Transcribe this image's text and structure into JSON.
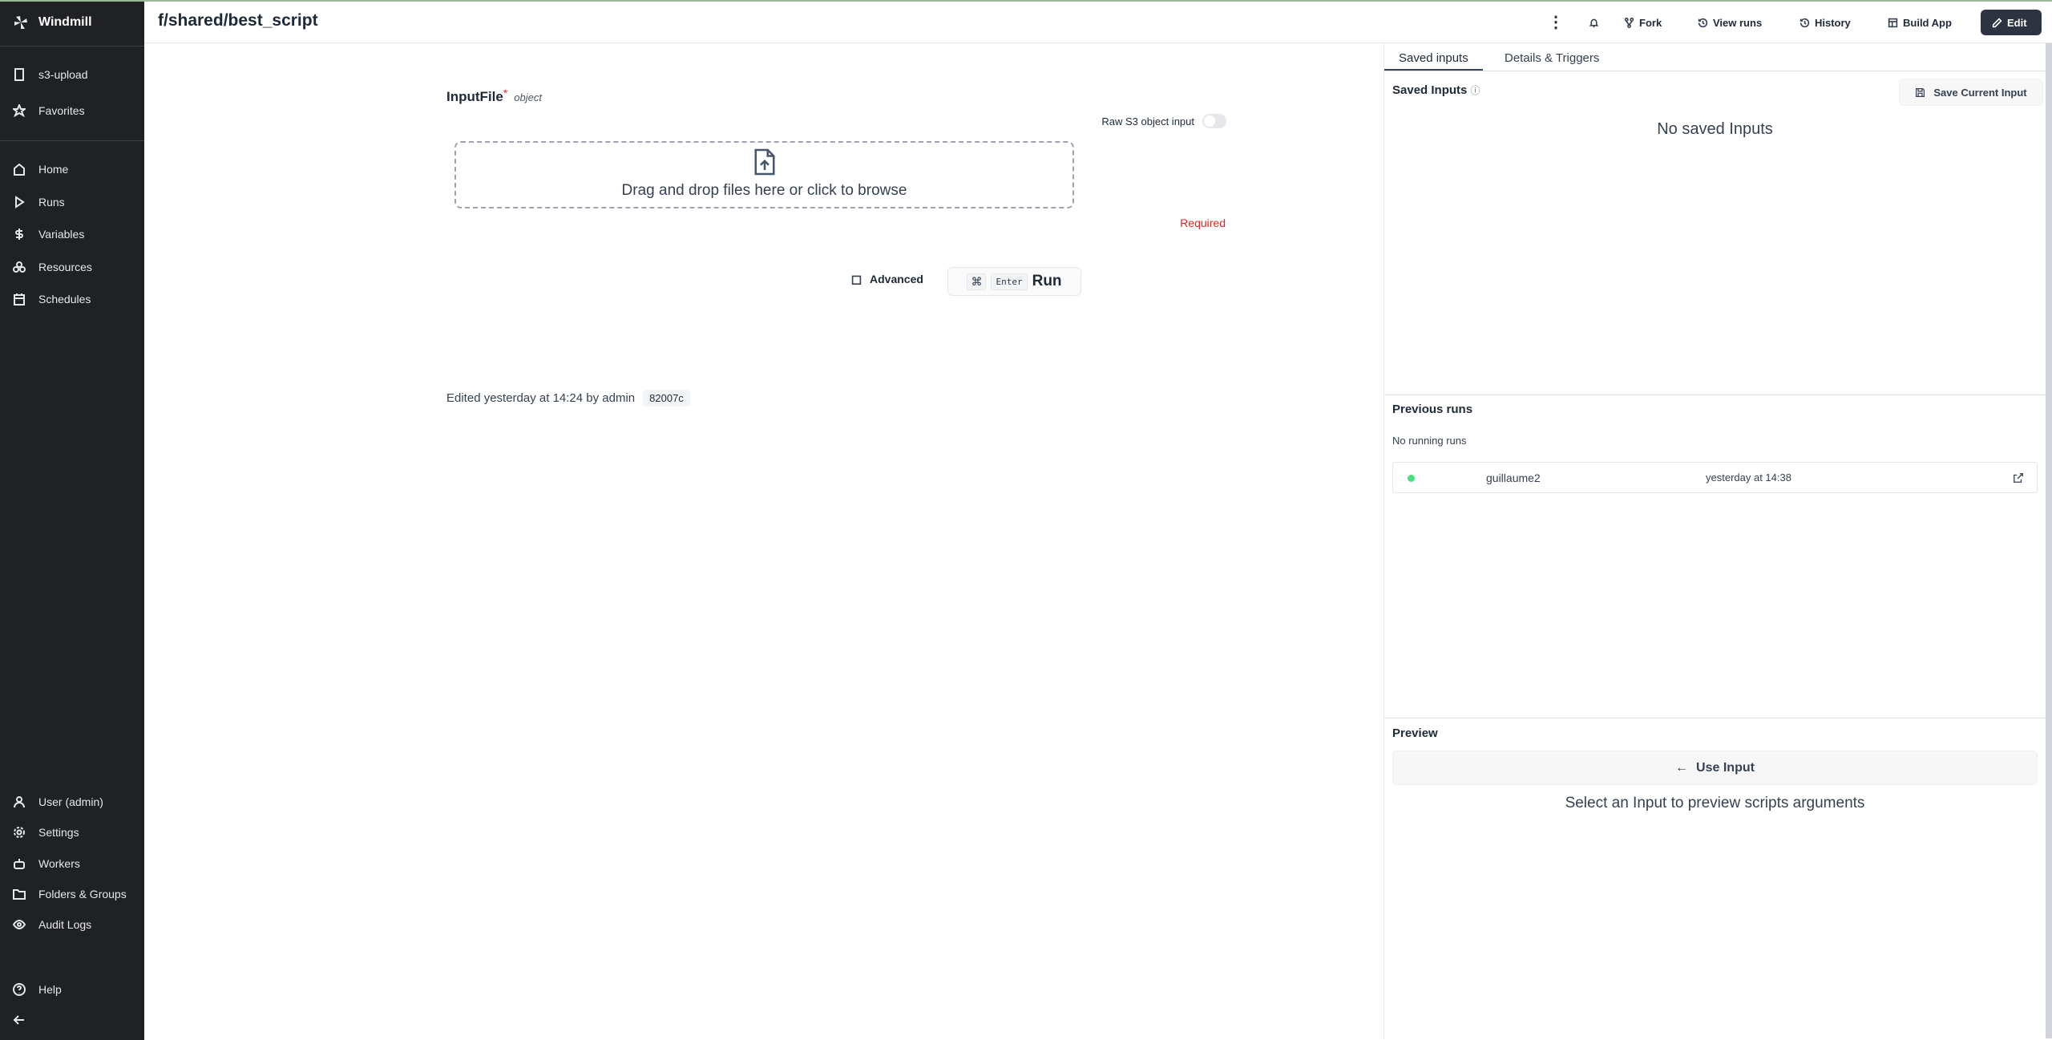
{
  "sidebar": {
    "brand": "Windmill",
    "top": [
      {
        "label": "s3-upload",
        "icon": "building-icon"
      },
      {
        "label": "Favorites",
        "icon": "star-icon"
      }
    ],
    "main": [
      {
        "label": "Home"
      },
      {
        "label": "Runs"
      },
      {
        "label": "Variables"
      },
      {
        "label": "Resources"
      },
      {
        "label": "Schedules"
      }
    ],
    "bottom": [
      {
        "label": "User (admin)"
      },
      {
        "label": "Settings"
      },
      {
        "label": "Workers"
      },
      {
        "label": "Folders & Groups"
      },
      {
        "label": "Audit Logs"
      }
    ],
    "help": "Help"
  },
  "header": {
    "title": "f/shared/best_script",
    "fork": "Fork",
    "view_runs": "View runs",
    "history": "History",
    "build_app": "Build App",
    "edit": "Edit"
  },
  "form": {
    "field_name": "InputFile",
    "required_mark": "*",
    "field_type": "object",
    "raw_toggle_label": "Raw S3 object input",
    "raw_toggle_on": false,
    "dropzone_text": "Drag and drop files here or click to browse",
    "required_text": "Required",
    "advanced": "Advanced",
    "shortcut_cmd": "⌘",
    "shortcut_enter": "Enter",
    "run": "Run",
    "edited": "Edited yesterday at 14:24 by admin",
    "version": "82007c"
  },
  "right": {
    "tabs": [
      "Saved inputs",
      "Details & Triggers"
    ],
    "saved_title": "Saved Inputs",
    "save_current": "Save Current Input",
    "no_saved": "No saved Inputs",
    "prev_title": "Previous runs",
    "no_running": "No running runs",
    "runs": [
      {
        "user": "guillaume2",
        "time": "yesterday at 14:38",
        "status_color": "#4ade80"
      }
    ],
    "preview_title": "Preview",
    "use_input": "Use Input",
    "preview_hint": "Select an Input to preview scripts arguments"
  },
  "colors": {
    "sidebar_bg": "#202125",
    "required": "#dc2626",
    "edit_bg": "#2d3340"
  }
}
